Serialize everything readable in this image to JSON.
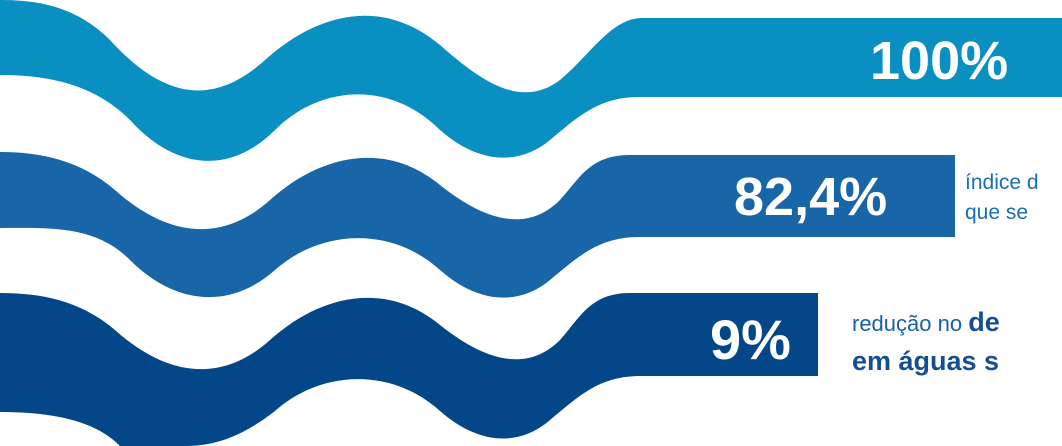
{
  "colors": {
    "band_1": "#0a8fc2",
    "band_2": "#1866a8",
    "band_3": "#034789",
    "text_blue": "#1a6fb0"
  },
  "stats": [
    {
      "value": "100%"
    },
    {
      "value": "82,4%",
      "caption_line1": "índice d",
      "caption_line2": "que se"
    },
    {
      "value": "9%",
      "caption_line1_prefix": "redução no ",
      "caption_line1_bold": "de",
      "caption_line2_bold": "em águas s"
    }
  ]
}
